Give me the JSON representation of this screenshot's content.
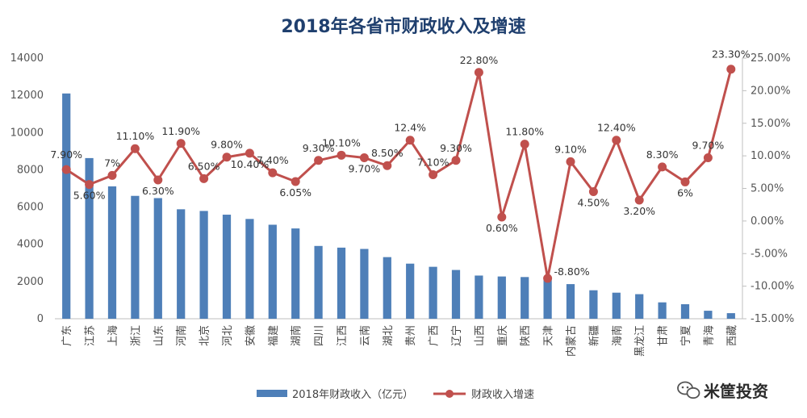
{
  "chart_data": {
    "type": "bar+line",
    "title": "2018年各省市财政收入及增速",
    "categories": [
      "广东",
      "江苏",
      "上海",
      "浙江",
      "山东",
      "河南",
      "北京",
      "河北",
      "安徽",
      "福建",
      "湖南",
      "四川",
      "江西",
      "云南",
      "湖北",
      "贵州",
      "广西",
      "辽宁",
      "山西",
      "重庆",
      "陕西",
      "天津",
      "内蒙古",
      "新疆",
      "海南",
      "黑龙江",
      "甘肃",
      "宁夏",
      "青海",
      "西藏"
    ],
    "series": [
      {
        "name": "2018年财政收入（亿元）",
        "type": "bar",
        "axis": "left",
        "color": "#4e7fb8",
        "values": [
          12100,
          8630,
          7110,
          6600,
          6480,
          5880,
          5790,
          5590,
          5360,
          5050,
          4850,
          3910,
          3820,
          3750,
          3310,
          2960,
          2790,
          2620,
          2320,
          2270,
          2240,
          2110,
          1860,
          1530,
          1400,
          1320,
          880,
          780,
          430,
          300
        ]
      },
      {
        "name": "财政收入增速",
        "type": "line",
        "axis": "right",
        "color": "#c0504d",
        "values": [
          7.9,
          5.6,
          7.0,
          11.1,
          6.3,
          11.9,
          6.5,
          9.8,
          10.4,
          7.4,
          6.05,
          9.3,
          10.1,
          9.7,
          8.5,
          12.4,
          7.1,
          9.3,
          22.8,
          0.6,
          11.8,
          -8.8,
          9.1,
          4.5,
          12.4,
          3.2,
          8.3,
          6.0,
          9.7,
          23.3
        ],
        "labels": [
          "7.90%",
          "5.60%",
          "7%",
          "11.10%",
          "6.30%",
          "11.90%",
          "6.50%",
          "9.80%",
          "10.40%",
          "7.40%",
          "6.05%",
          "9.30%",
          "10.10%",
          "9.70%",
          "8.50%",
          "12.4%",
          "7.10%",
          "9.30%",
          "22.80%",
          "0.60%",
          "11.80%",
          "-8.80%",
          "9.10%",
          "4.50%",
          "12.40%",
          "3.20%",
          "8.30%",
          "6%",
          "9.70%",
          "23.30%"
        ]
      }
    ],
    "y_left": {
      "min": 0,
      "max": 14000,
      "ticks": [
        "0",
        "2000",
        "4000",
        "6000",
        "8000",
        "10000",
        "12000",
        "14000"
      ]
    },
    "y_right": {
      "min": -15,
      "max": 25,
      "ticks": [
        "-15.00%",
        "-10.00%",
        "-5.00%",
        "0.00%",
        "5.00%",
        "10.00%",
        "15.00%",
        "20.00%",
        "25.00%"
      ]
    },
    "grid": false,
    "legend": "bottom"
  },
  "watermark": {
    "text": "米筐投资",
    "icon": "wechat-icon"
  }
}
